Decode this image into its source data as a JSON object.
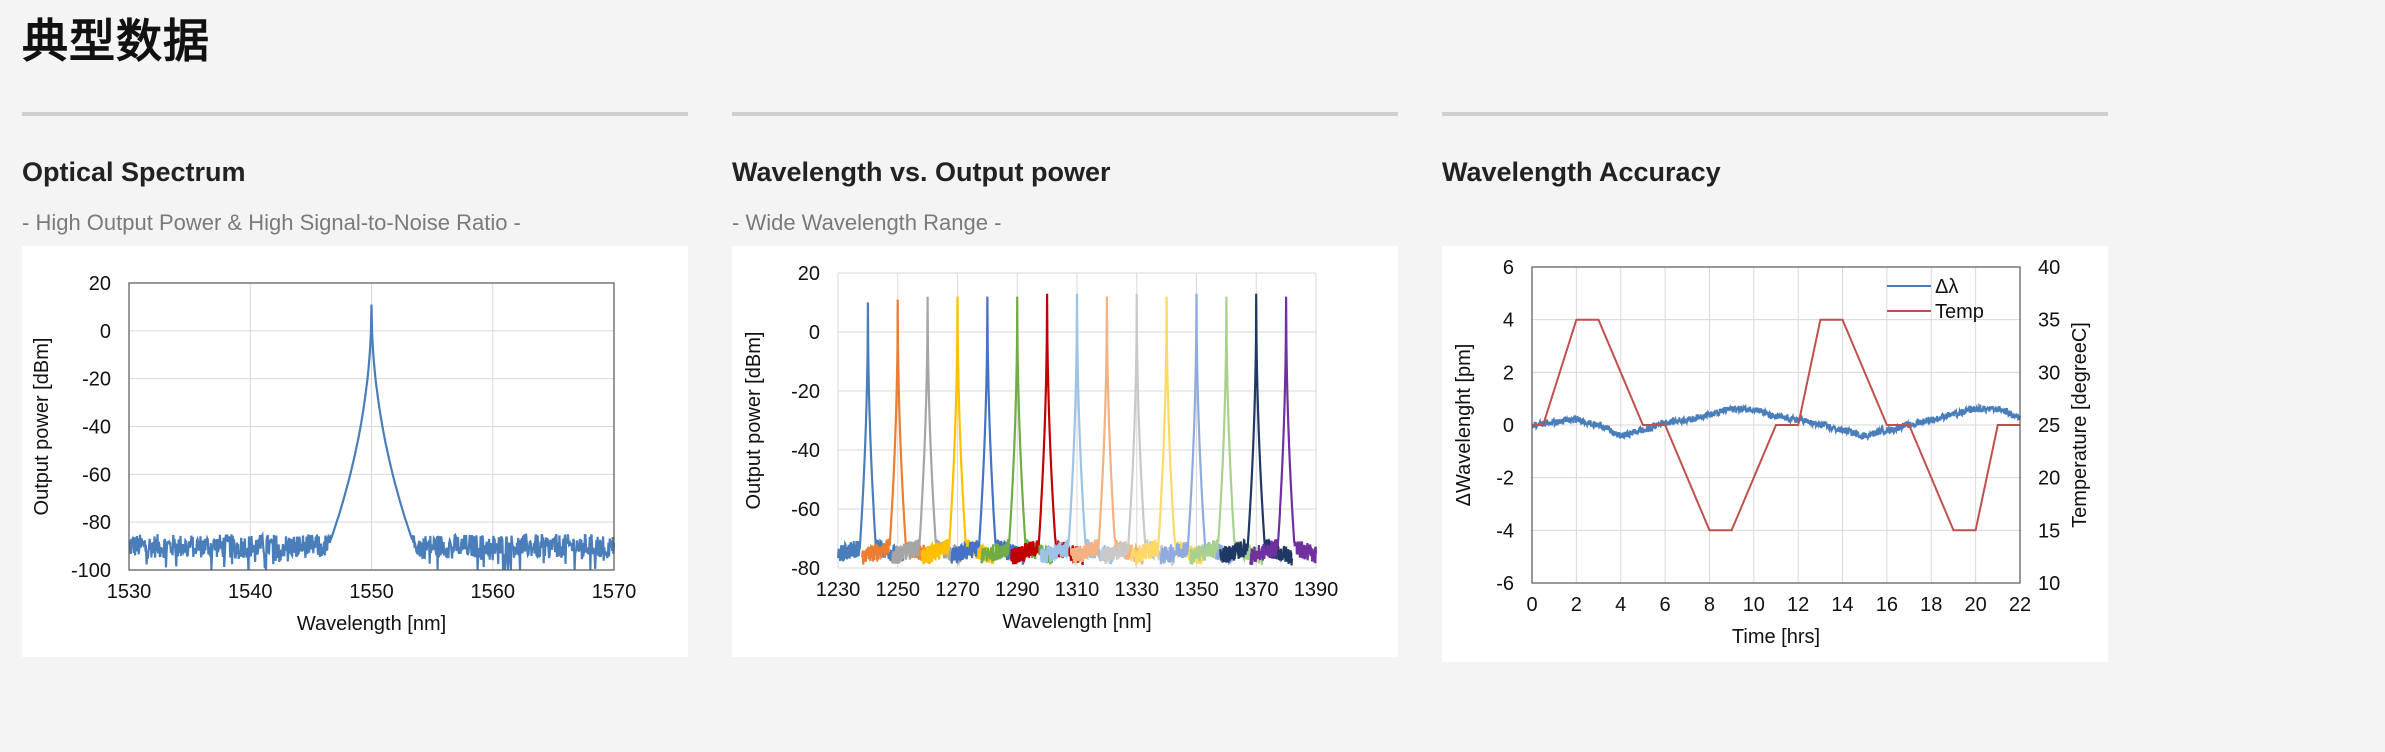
{
  "page": {
    "title": "典型数据"
  },
  "sections": [
    {
      "heading": "Optical Spectrum",
      "subtitle": "- High Output Power & High Signal-to-Noise Ratio -"
    },
    {
      "heading": "Wavelength vs. Output power",
      "subtitle": "- Wide Wavelength Range -"
    },
    {
      "heading": "Wavelength Accuracy",
      "subtitle": ""
    }
  ],
  "chart_data": [
    {
      "type": "line",
      "xlabel": "Wavelength [nm]",
      "ylabel": "Output power [dBm]",
      "xlim": [
        1530,
        1570
      ],
      "ylim": [
        -100,
        20
      ],
      "xticks": [
        "1530",
        "1540",
        "1550",
        "1560",
        "1570"
      ],
      "yticks": [
        "20",
        "0",
        "-20",
        "-40",
        "-60",
        "-80",
        "-100"
      ],
      "grid": true,
      "color": "#4a7ebb",
      "series": [
        {
          "peak_x": 1550,
          "peak_y": 11,
          "noise_floor": -90
        }
      ]
    },
    {
      "type": "line",
      "xlabel": "Wavelength [nm]",
      "ylabel": "Output power [dBm]",
      "xlim": [
        1230,
        1390
      ],
      "ylim": [
        -80,
        20
      ],
      "xticks": [
        "1230",
        "1250",
        "1270",
        "1290",
        "1310",
        "1330",
        "1350",
        "1370",
        "1390"
      ],
      "yticks": [
        "20",
        "0",
        "-20",
        "-40",
        "-60",
        "-80"
      ],
      "grid": true,
      "series": [
        {
          "peak_x": 1240,
          "peak_y": 10,
          "color": "#4a7ebb"
        },
        {
          "peak_x": 1250,
          "peak_y": 11,
          "color": "#ed7d31"
        },
        {
          "peak_x": 1260,
          "peak_y": 12,
          "color": "#a5a5a5"
        },
        {
          "peak_x": 1270,
          "peak_y": 12,
          "color": "#ffc000"
        },
        {
          "peak_x": 1280,
          "peak_y": 12,
          "color": "#4472c4"
        },
        {
          "peak_x": 1290,
          "peak_y": 12,
          "color": "#70ad47"
        },
        {
          "peak_x": 1300,
          "peak_y": 13,
          "color": "#c00000"
        },
        {
          "peak_x": 1310,
          "peak_y": 13,
          "color": "#9dc3e6"
        },
        {
          "peak_x": 1320,
          "peak_y": 12,
          "color": "#f4b183"
        },
        {
          "peak_x": 1330,
          "peak_y": 13,
          "color": "#c9c9c9"
        },
        {
          "peak_x": 1340,
          "peak_y": 12,
          "color": "#ffd966"
        },
        {
          "peak_x": 1350,
          "peak_y": 13,
          "color": "#8faadc"
        },
        {
          "peak_x": 1360,
          "peak_y": 12,
          "color": "#a9d18e"
        },
        {
          "peak_x": 1370,
          "peak_y": 13,
          "color": "#203864"
        },
        {
          "peak_x": 1380,
          "peak_y": 12,
          "color": "#7030a0"
        }
      ]
    },
    {
      "type": "line",
      "xlabel": "Time [hrs]",
      "ylabel": "ΔWavelenght [pm]",
      "y2label": "Temperature [degreeC]",
      "xlim": [
        0,
        22
      ],
      "ylim": [
        -6,
        6
      ],
      "y2lim": [
        10,
        40
      ],
      "xticks": [
        "0",
        "2",
        "4",
        "6",
        "8",
        "10",
        "12",
        "14",
        "16",
        "18",
        "20",
        "22"
      ],
      "yticks": [
        "6",
        "4",
        "2",
        "0",
        "-2",
        "-4",
        "-6"
      ],
      "y2ticks": [
        "40",
        "35",
        "30",
        "25",
        "20",
        "15",
        "10"
      ],
      "grid": true,
      "legend": "top-right",
      "series": [
        {
          "name": "Δλ",
          "axis": "left",
          "color": "#4a7ebb",
          "x": [
            0,
            1,
            2,
            3,
            4,
            5,
            6,
            7,
            8,
            9,
            10,
            11,
            12,
            13,
            14,
            15,
            16,
            17,
            18,
            19,
            20,
            21,
            22
          ],
          "y": [
            0.0,
            0.1,
            0.2,
            0.0,
            -0.4,
            -0.2,
            0.1,
            0.2,
            0.4,
            0.6,
            0.6,
            0.3,
            0.2,
            0.0,
            -0.2,
            -0.4,
            -0.2,
            0.0,
            0.2,
            0.4,
            0.6,
            0.6,
            0.3
          ]
        },
        {
          "name": "Temp",
          "axis": "right",
          "color": "#c0504d",
          "x": [
            0,
            0.5,
            2,
            3,
            4,
            5,
            6,
            8,
            9,
            11,
            12,
            13,
            14,
            16,
            17,
            19,
            20,
            21,
            22
          ],
          "y": [
            25,
            25,
            35,
            35,
            30,
            25,
            25,
            15,
            15,
            25,
            25,
            35,
            35,
            25,
            25,
            15,
            15,
            25,
            25
          ]
        }
      ]
    }
  ]
}
